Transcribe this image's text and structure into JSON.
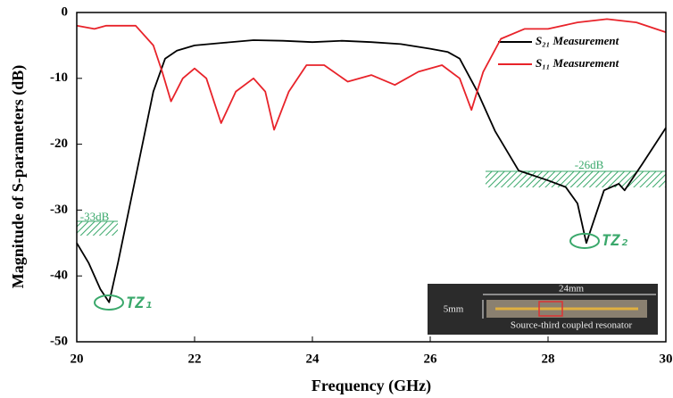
{
  "chart_data": {
    "type": "line",
    "xlabel": "Frequency (GHz)",
    "ylabel": "Magnitude of S-parameters (dB)",
    "xlim": [
      20,
      30
    ],
    "xticks": [
      20,
      22,
      24,
      26,
      28,
      30
    ],
    "ylim": [
      -50,
      0
    ],
    "yticks": [
      0,
      -10,
      -20,
      -30,
      -40,
      -50
    ],
    "legend": "upper right",
    "series": [
      {
        "name": "S₂₁ Measurement",
        "color": "#000000",
        "x": [
          20,
          20.2,
          20.4,
          20.55,
          20.7,
          21.0,
          21.3,
          21.5,
          21.7,
          22,
          22.5,
          23,
          23.5,
          24,
          24.5,
          25,
          25.5,
          26,
          26.3,
          26.5,
          26.8,
          27.1,
          27.5,
          28,
          28.3,
          28.5,
          28.65,
          28.8,
          28.95,
          29.2,
          29.3,
          29.6,
          30
        ],
        "values": [
          -35,
          -38,
          -42,
          -44,
          -38,
          -25,
          -12,
          -7,
          -5.8,
          -5,
          -4.6,
          -4.2,
          -4.3,
          -4.5,
          -4.3,
          -4.5,
          -4.8,
          -5.5,
          -6,
          -7,
          -12,
          -18,
          -24,
          -25.5,
          -26.5,
          -29,
          -35,
          -31,
          -27,
          -26,
          -27,
          -23,
          -17.5
        ]
      },
      {
        "name": "S₁₁ Measurement",
        "color": "#e8232a",
        "x": [
          20,
          20.3,
          20.5,
          21,
          21.3,
          21.45,
          21.6,
          21.8,
          22,
          22.2,
          22.45,
          22.7,
          23,
          23.2,
          23.35,
          23.6,
          23.9,
          24.2,
          24.6,
          25,
          25.4,
          25.8,
          26.2,
          26.5,
          26.7,
          26.9,
          27.2,
          27.6,
          28,
          28.5,
          29,
          29.5,
          30
        ],
        "values": [
          -2,
          -2.5,
          -2,
          -2,
          -5,
          -9,
          -13.5,
          -10,
          -8.5,
          -10,
          -16.8,
          -12,
          -10,
          -12,
          -17.8,
          -12,
          -8,
          -8,
          -10.5,
          -9.5,
          -11,
          -9,
          -8,
          -10,
          -14.8,
          -9,
          -4,
          -2.5,
          -2.5,
          -1.5,
          -1,
          -1.5,
          -3
        ]
      }
    ],
    "annotations": [
      "-33dB",
      "-26dB",
      "TZ₁",
      "TZ₂"
    ]
  },
  "inset": {
    "width_label": "24mm",
    "height_label": "5mm",
    "caption": "Source-third coupled resonator"
  }
}
